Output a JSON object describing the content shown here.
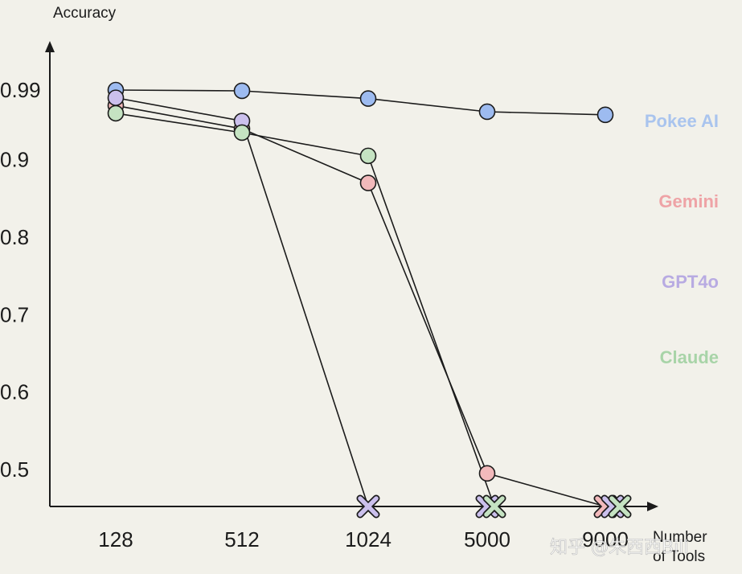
{
  "chart_data": {
    "type": "line",
    "ylabel": "Accuracy",
    "xlabel_lines": [
      "Number",
      "of Tools"
    ],
    "categories": [
      "128",
      "512",
      "1024",
      "5000",
      "9000"
    ],
    "y_tick_labels": [
      "0.99",
      "0.9",
      "0.8",
      "0.7",
      "0.6",
      "0.5"
    ],
    "y_tick_values": [
      0.99,
      0.9,
      0.8,
      0.7,
      0.6,
      0.5
    ],
    "ylim": [
      0.45,
      1.05
    ],
    "grid": false,
    "legend_placement": "right",
    "series": [
      {
        "name": "Pokee AI",
        "color": "#a9c4ee",
        "marker_color": "#9dbbf0",
        "values": [
          0.99,
          0.989,
          0.979,
          0.962,
          0.958
        ],
        "failed": [
          false,
          false,
          false,
          false,
          false
        ]
      },
      {
        "name": "Gemini",
        "color": "#eea3a6",
        "marker_color": "#f2b9bb",
        "values": [
          0.97,
          0.94,
          0.87,
          0.495,
          null
        ],
        "failed": [
          false,
          false,
          false,
          false,
          true
        ]
      },
      {
        "name": "GPT4o",
        "color": "#b8abe2",
        "marker_color": "#cbc0ec",
        "values": [
          0.98,
          0.95,
          null,
          null,
          null
        ],
        "failed": [
          false,
          false,
          true,
          true,
          true
        ]
      },
      {
        "name": "Claude",
        "color": "#a8d4a8",
        "marker_color": "#c5e3c2",
        "values": [
          0.96,
          0.935,
          0.905,
          null,
          null
        ],
        "failed": [
          false,
          false,
          false,
          true,
          true
        ]
      }
    ]
  },
  "watermark": "知乎 @朱西西Bill"
}
